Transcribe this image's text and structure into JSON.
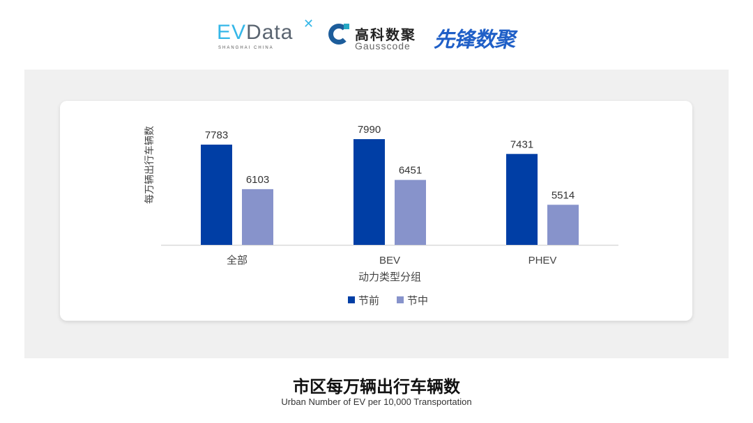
{
  "logos": {
    "evdata": {
      "text": "EVData",
      "subtext": "SHANGHAI CHINA"
    },
    "gausscode": {
      "cn": "高科数聚",
      "en": "Gausscode"
    },
    "xianfeng": {
      "text": "先锋数聚"
    }
  },
  "title": "市区每万辆出行车辆数",
  "subtitle": "Urban Number of EV per 10,000 Transportation",
  "chart_data": {
    "type": "bar",
    "categories": [
      "全部",
      "BEV",
      "PHEV"
    ],
    "series": [
      {
        "name": "节前",
        "values": [
          7783,
          7990,
          7431
        ],
        "color": "#003ea5"
      },
      {
        "name": "节中",
        "values": [
          6103,
          6451,
          5514
        ],
        "color": "#8793cb"
      }
    ],
    "xlabel": "动力类型分组",
    "ylabel": "每万辆出行车辆数",
    "ylim": [
      4000,
      9000
    ],
    "grid": false,
    "data_labels": true,
    "legend": "bottom"
  }
}
